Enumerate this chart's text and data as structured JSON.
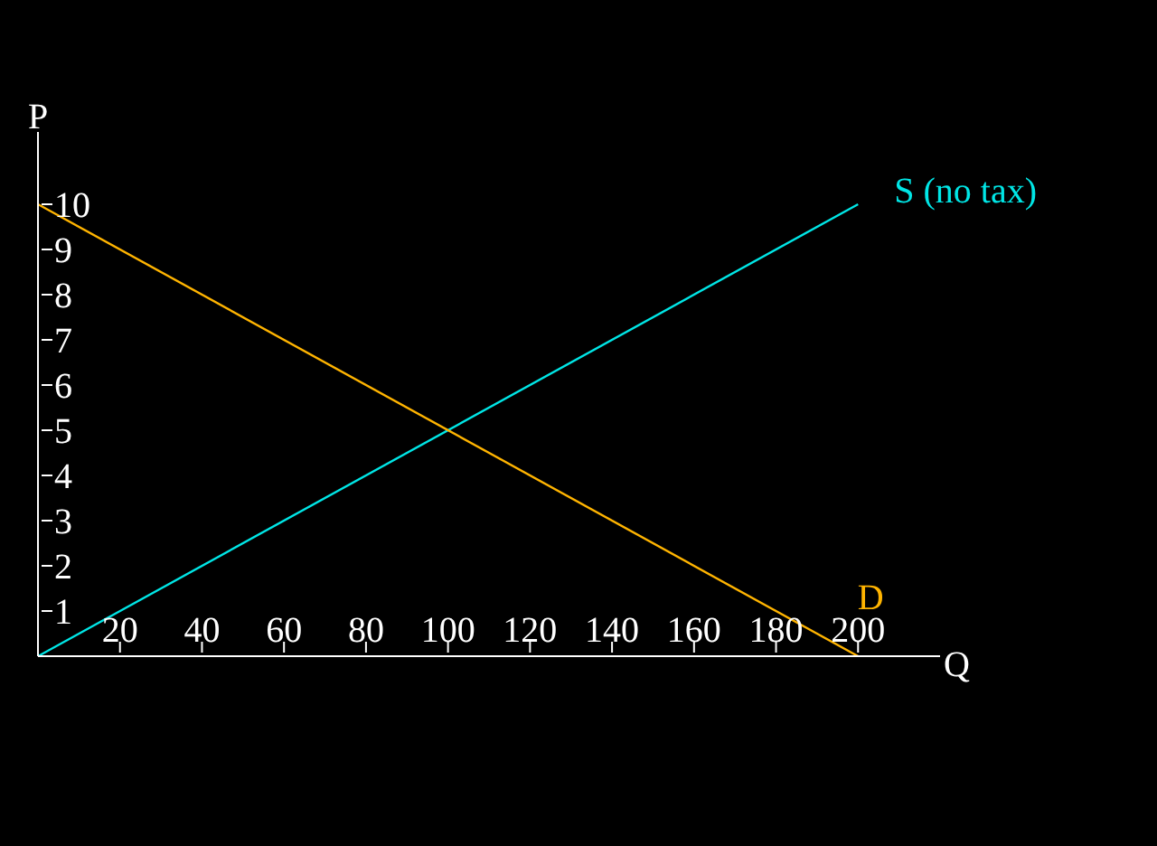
{
  "chart_data": {
    "type": "line",
    "xlabel": "Q",
    "ylabel": "P",
    "x": [
      0,
      200
    ],
    "series": [
      {
        "name": "S (no tax)",
        "color": "#00e6e6",
        "values": [
          0,
          10
        ]
      },
      {
        "name": "D",
        "color": "#ffb400",
        "values": [
          10,
          0
        ]
      }
    ],
    "xlim": [
      0,
      220
    ],
    "ylim": [
      0,
      11.6
    ],
    "xticks": [
      20,
      40,
      60,
      80,
      100,
      120,
      140,
      160,
      180,
      200
    ],
    "yticks": [
      1,
      2,
      3,
      4,
      5,
      6,
      7,
      8,
      9,
      10
    ]
  }
}
